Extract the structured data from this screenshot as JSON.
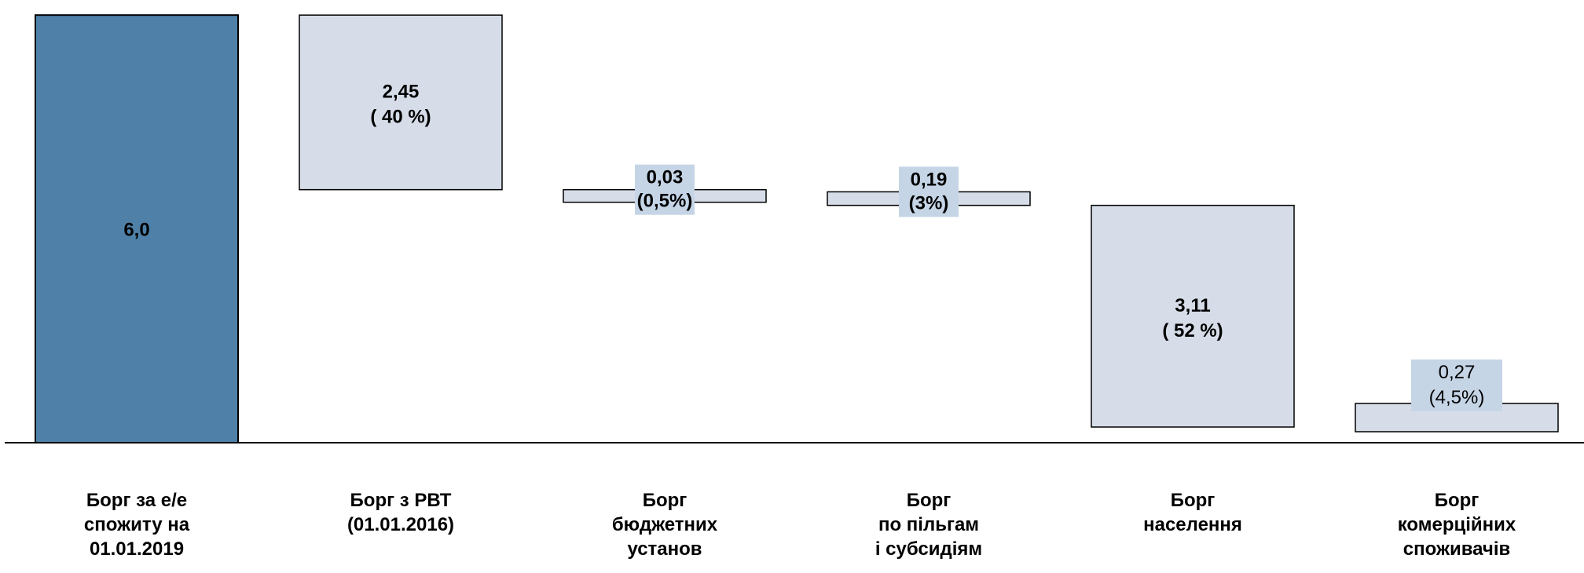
{
  "chart_data": {
    "type": "bar",
    "subtype": "waterfall",
    "categories": [
      "Борг за е/е\nспожиту на\n01.01.2019",
      "Борг з РВТ\n(01.01.2016)",
      "Борг\nбюджетних\nустанов",
      "Борг\nпо пільгам\nі субсидіям",
      "Борг\nнаселення",
      "Борг\nкомерційних\nспоживачів"
    ],
    "values": [
      6.0,
      2.45,
      0.03,
      0.19,
      3.11,
      0.27
    ],
    "labels": [
      {
        "value": "6,0",
        "share": ""
      },
      {
        "value": "2,45",
        "share": "( 40 %)"
      },
      {
        "value": "0,03",
        "share": "(0,5%)"
      },
      {
        "value": "0,19",
        "share": "(3%)"
      },
      {
        "value": "3,11",
        "share": "( 52 %)"
      },
      {
        "value": "0,27",
        "share": "(4,5%)"
      }
    ],
    "title": "",
    "xlabel": "",
    "ylabel": "",
    "grid": false,
    "legend": "none",
    "colors": {
      "total_bar": "#4f81a8",
      "component_bar": "#d6dde8",
      "label_box": "#c5d5e6",
      "outline": "#000000",
      "total_label": "#ffffff"
    }
  }
}
